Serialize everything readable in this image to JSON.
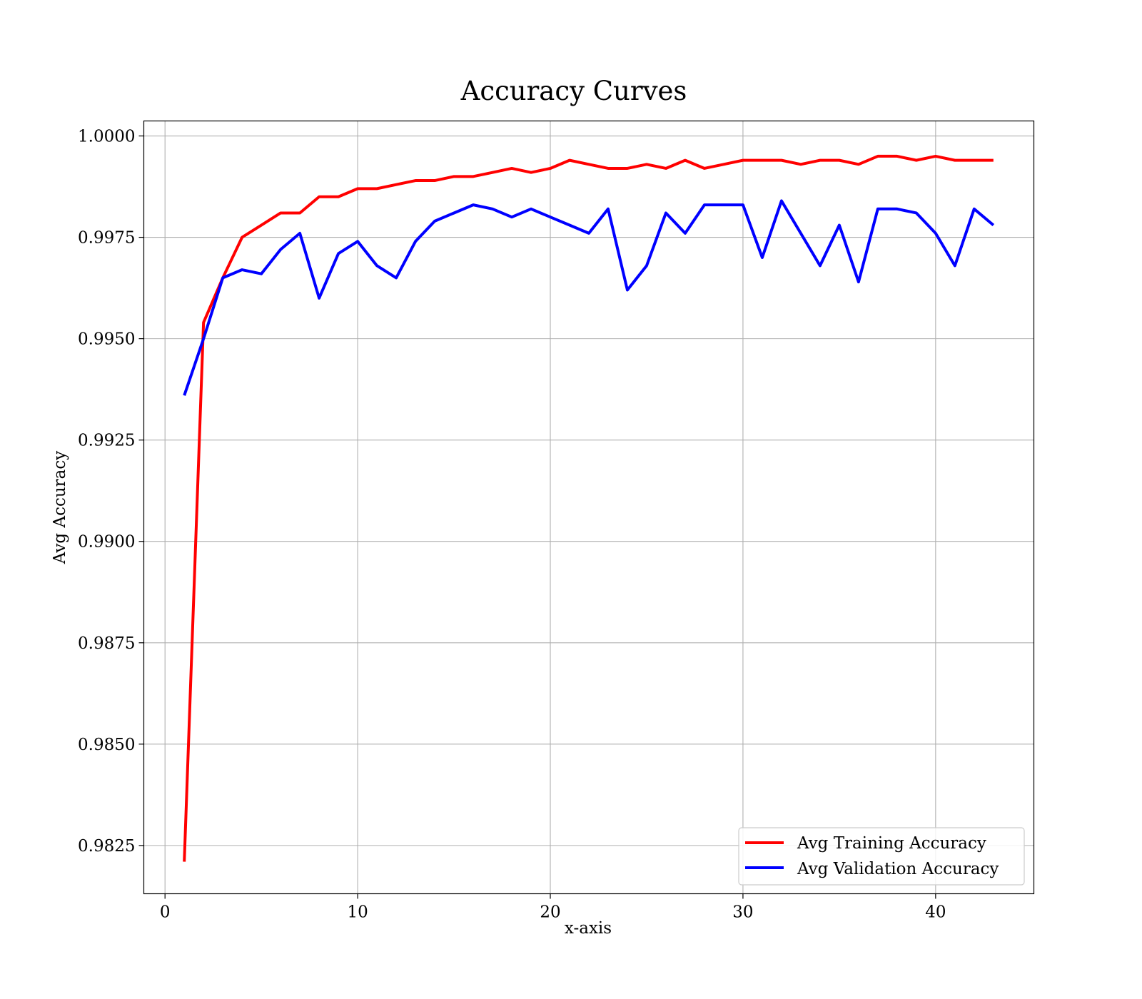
{
  "chart_data": {
    "type": "line",
    "title": "Accuracy Curves",
    "xlabel": "x-axis",
    "ylabel": "Avg Accuracy",
    "xlim": [
      -1.1,
      45.1
    ],
    "ylim": [
      0.98131,
      1.00037
    ],
    "xticks": [
      0,
      10,
      20,
      30,
      40
    ],
    "xtick_labels": [
      "0",
      "10",
      "20",
      "30",
      "40"
    ],
    "yticks": [
      0.9825,
      0.985,
      0.9875,
      0.99,
      0.9925,
      0.995,
      0.9975,
      1.0
    ],
    "ytick_labels": [
      "0.9825",
      "0.9850",
      "0.9875",
      "0.9900",
      "0.9925",
      "0.9950",
      "0.9975",
      "1.0000"
    ],
    "grid": true,
    "legend_position": "lower-right",
    "x": [
      1,
      2,
      3,
      4,
      5,
      6,
      7,
      8,
      9,
      10,
      11,
      12,
      13,
      14,
      15,
      16,
      17,
      18,
      19,
      20,
      21,
      22,
      23,
      24,
      25,
      26,
      27,
      28,
      29,
      30,
      31,
      32,
      33,
      34,
      35,
      36,
      37,
      38,
      39,
      40,
      41,
      42,
      43
    ],
    "series": [
      {
        "name": "Avg Training Accuracy",
        "color": "#ff0000",
        "values": [
          0.9821,
          0.9954,
          0.9965,
          0.9975,
          0.9978,
          0.9981,
          0.9981,
          0.9985,
          0.9985,
          0.9987,
          0.9987,
          0.9988,
          0.9989,
          0.9989,
          0.999,
          0.999,
          0.9991,
          0.9992,
          0.9991,
          0.9992,
          0.9994,
          0.9993,
          0.9992,
          0.9992,
          0.9993,
          0.9992,
          0.9994,
          0.9992,
          0.9993,
          0.9994,
          0.9994,
          0.9994,
          0.9993,
          0.9994,
          0.9994,
          0.9993,
          0.9995,
          0.9995,
          0.9994,
          0.9995,
          0.9994,
          0.9994,
          0.9994
        ]
      },
      {
        "name": "Avg Validation Accuracy",
        "color": "#0000ff",
        "values": [
          0.9936,
          0.995,
          0.9965,
          0.9967,
          0.9966,
          0.9972,
          0.9976,
          0.996,
          0.9971,
          0.9974,
          0.9968,
          0.9965,
          0.9974,
          0.9979,
          0.9981,
          0.9983,
          0.9982,
          0.998,
          0.9982,
          0.998,
          0.9978,
          0.9976,
          0.9982,
          0.9962,
          0.9968,
          0.9981,
          0.9976,
          0.9983,
          0.9983,
          0.9983,
          0.997,
          0.9984,
          0.9976,
          0.9968,
          0.9978,
          0.9964,
          0.9982,
          0.9982,
          0.9981,
          0.9976,
          0.9968,
          0.9982,
          0.9978
        ]
      }
    ]
  }
}
